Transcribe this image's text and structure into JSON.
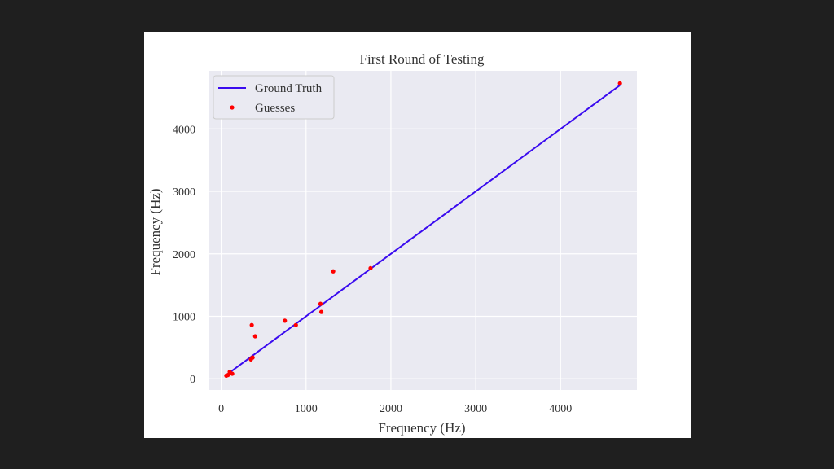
{
  "colors": {
    "page_background": "#1f1f1f",
    "figure_background": "#ffffff",
    "plot_background": "#eaeaf2",
    "grid": "#ffffff",
    "line": "#3a0bef",
    "points": "#ff0000",
    "text": "#333333"
  },
  "chart_data": {
    "type": "scatter",
    "title": "First Round of Testing",
    "xlabel": "Frequency (Hz)",
    "ylabel": "Frequency (Hz)",
    "xlim": [
      -150,
      4900
    ],
    "ylim": [
      -180,
      4930
    ],
    "xticks": [
      0,
      1000,
      2000,
      3000,
      4000
    ],
    "xtick_labels": [
      "0",
      "1000",
      "2000",
      "3000",
      "4000"
    ],
    "yticks": [
      0,
      1000,
      2000,
      3000,
      4000
    ],
    "ytick_labels": [
      "0",
      "1000",
      "2000",
      "3000",
      "4000"
    ],
    "grid": true,
    "legend_position": "upper left",
    "series": [
      {
        "name": "Ground Truth",
        "kind": "line",
        "color": "#3a0bef",
        "x": [
          60,
          4700
        ],
        "y": [
          60,
          4700
        ]
      },
      {
        "name": "Guesses",
        "kind": "scatter",
        "color": "#ff0000",
        "x": [
          60,
          80,
          100,
          110,
          130,
          350,
          360,
          370,
          400,
          750,
          880,
          1170,
          1180,
          1320,
          1760,
          4700
        ],
        "y": [
          50,
          60,
          110,
          90,
          80,
          310,
          860,
          340,
          680,
          930,
          860,
          1200,
          1070,
          1720,
          1770,
          4730
        ]
      }
    ]
  }
}
